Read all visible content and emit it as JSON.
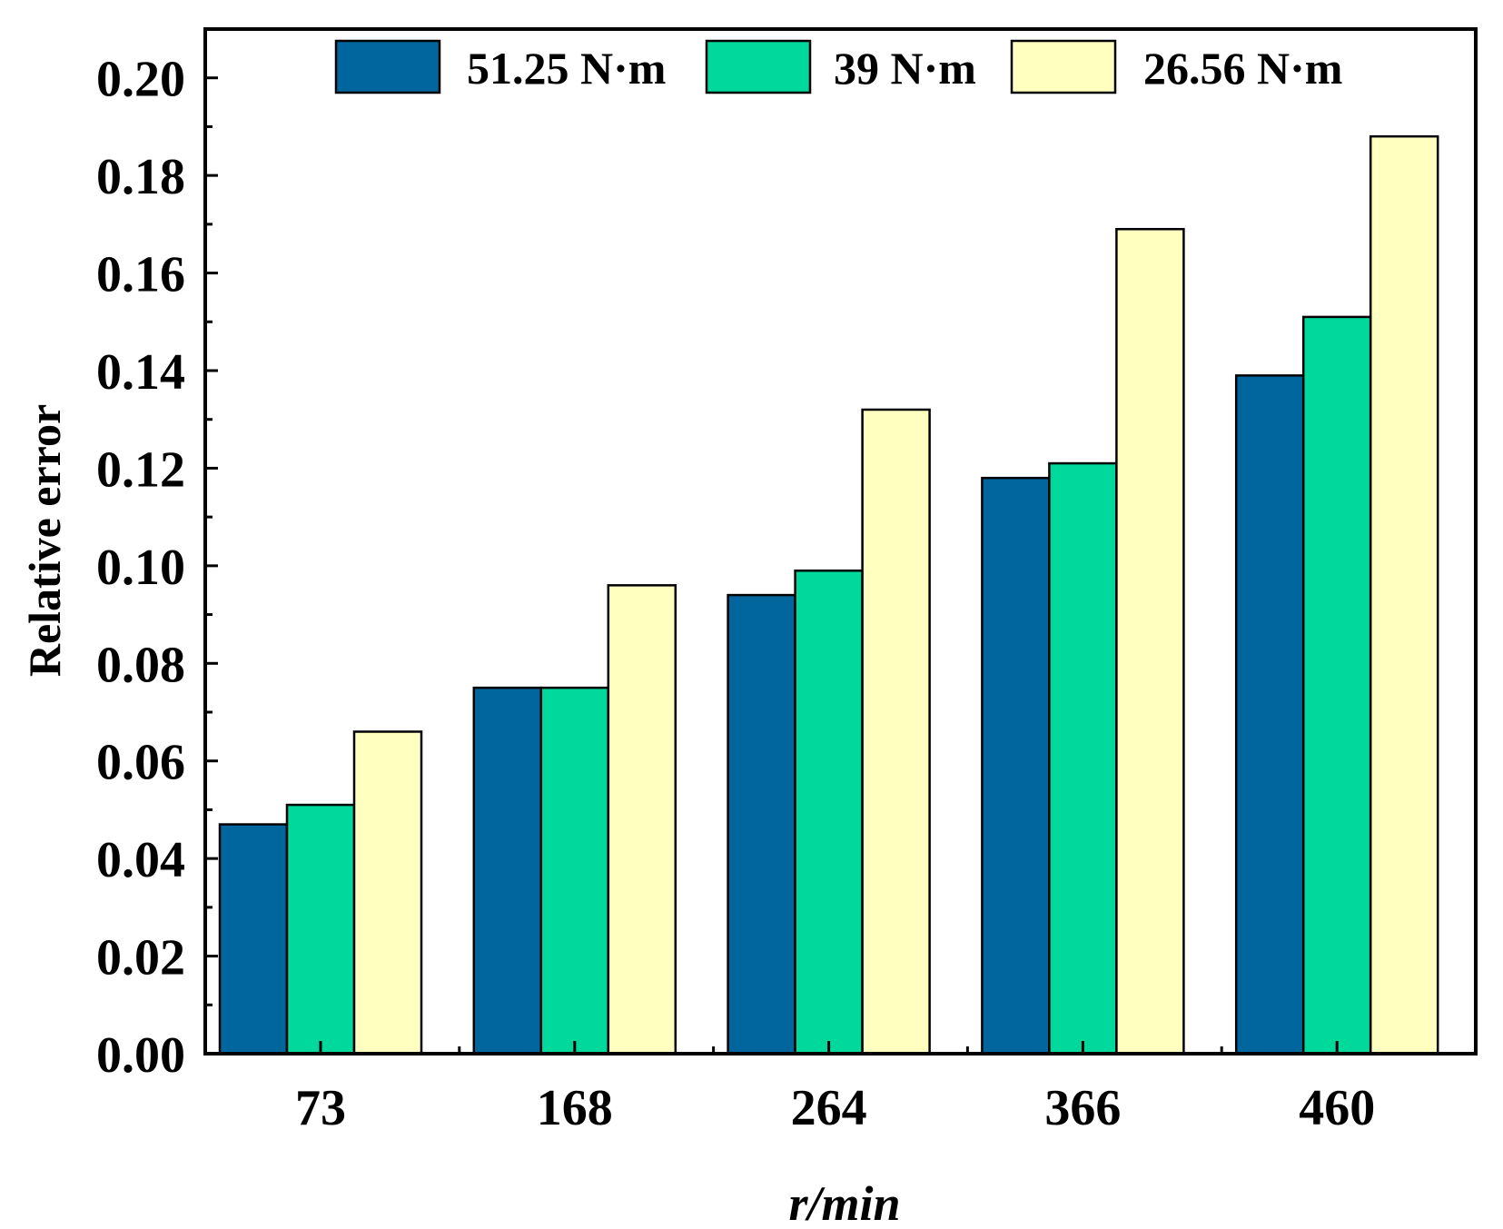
{
  "chart_data": {
    "type": "bar",
    "title": "",
    "xlabel": "r/min",
    "ylabel": "Relative error",
    "categories": [
      "73",
      "168",
      "264",
      "366",
      "460"
    ],
    "ylim": [
      0,
      0.21
    ],
    "yticks": [
      "0.00",
      "0.02",
      "0.04",
      "0.06",
      "0.08",
      "0.10",
      "0.12",
      "0.14",
      "0.16",
      "0.18",
      "0.20"
    ],
    "grid": false,
    "legend_position": "top",
    "series": [
      {
        "name": "51.25 N·m",
        "color": "#02669e",
        "values": [
          0.047,
          0.075,
          0.094,
          0.118,
          0.139
        ]
      },
      {
        "name": "39 N·m",
        "color": "#00d89c",
        "values": [
          0.051,
          0.075,
          0.099,
          0.121,
          0.151
        ]
      },
      {
        "name": "26.56 N·m",
        "color": "#ffffbf",
        "values": [
          0.066,
          0.096,
          0.132,
          0.169,
          0.188
        ]
      }
    ]
  }
}
